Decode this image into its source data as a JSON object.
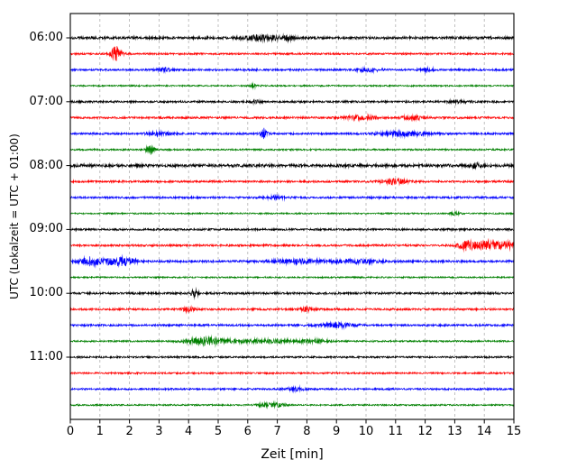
{
  "chart_data": {
    "type": "seismogram",
    "title": "",
    "xlabel": "Zeit  [min]",
    "ylabel": "UTC (Lokalzeit = UTC + 01:00)",
    "xlim": [
      0,
      15
    ],
    "x_ticks": [
      "0",
      "1",
      "2",
      "3",
      "4",
      "5",
      "6",
      "7",
      "8",
      "9",
      "10",
      "11",
      "12",
      "13",
      "14",
      "15"
    ],
    "hour_labels": [
      "06:00",
      "07:00",
      "08:00",
      "09:00",
      "10:00",
      "11:00"
    ],
    "minutes_per_line": 15,
    "grid": "vertical-dashed",
    "colors_cycle": [
      "#000000",
      "#ff0000",
      "#0000ff",
      "#008000"
    ],
    "traces": [
      {
        "start": "06:00",
        "color": "#000000",
        "base": 1.5,
        "events": [
          {
            "t": 6.5,
            "s": 0.45,
            "a": 3
          },
          {
            "t": 7.4,
            "s": 0.15,
            "a": 2
          }
        ]
      },
      {
        "start": "06:15",
        "color": "#ff0000",
        "base": 1.1,
        "events": [
          {
            "t": 1.55,
            "s": 0.12,
            "a": 9
          }
        ]
      },
      {
        "start": "06:30",
        "color": "#0000ff",
        "base": 1.2,
        "events": [
          {
            "t": 3.2,
            "s": 0.15,
            "a": 2
          },
          {
            "t": 10.1,
            "s": 0.3,
            "a": 1.6
          },
          {
            "t": 12.1,
            "s": 0.2,
            "a": 1.6
          }
        ]
      },
      {
        "start": "06:45",
        "color": "#008000",
        "base": 0.9,
        "events": [
          {
            "t": 6.2,
            "s": 0.1,
            "a": 1.5
          }
        ]
      },
      {
        "start": "07:00",
        "color": "#000000",
        "base": 1.2,
        "events": [
          {
            "t": 6.3,
            "s": 0.1,
            "a": 1.5
          },
          {
            "t": 13.2,
            "s": 0.3,
            "a": 1.2
          }
        ]
      },
      {
        "start": "07:15",
        "color": "#ff0000",
        "base": 1.2,
        "events": [
          {
            "t": 9.8,
            "s": 0.35,
            "a": 2.5
          },
          {
            "t": 11.6,
            "s": 0.3,
            "a": 2
          }
        ]
      },
      {
        "start": "07:30",
        "color": "#0000ff",
        "base": 1.2,
        "events": [
          {
            "t": 3.0,
            "s": 0.3,
            "a": 1.4
          },
          {
            "t": 6.55,
            "s": 0.07,
            "a": 7
          },
          {
            "t": 11.3,
            "s": 0.55,
            "a": 2.6
          }
        ]
      },
      {
        "start": "07:45",
        "color": "#008000",
        "base": 1.0,
        "events": [
          {
            "t": 2.7,
            "s": 0.09,
            "a": 6
          }
        ]
      },
      {
        "start": "08:00",
        "color": "#000000",
        "base": 1.8,
        "events": [
          {
            "t": 13.7,
            "s": 0.15,
            "a": 2.5
          }
        ]
      },
      {
        "start": "08:15",
        "color": "#ff0000",
        "base": 1.2,
        "events": [
          {
            "t": 11.0,
            "s": 0.3,
            "a": 3
          }
        ]
      },
      {
        "start": "08:30",
        "color": "#0000ff",
        "base": 1.2,
        "events": [
          {
            "t": 7.0,
            "s": 0.25,
            "a": 1.5
          }
        ]
      },
      {
        "start": "08:45",
        "color": "#008000",
        "base": 0.9,
        "events": [
          {
            "t": 13.0,
            "s": 0.1,
            "a": 1.5
          }
        ]
      },
      {
        "start": "09:00",
        "color": "#000000",
        "base": 1.2,
        "events": []
      },
      {
        "start": "09:15",
        "color": "#ff0000",
        "base": 1.2,
        "events": [
          {
            "t": 13.4,
            "s": 0.2,
            "a": 6
          },
          {
            "t": 14.1,
            "s": 0.25,
            "a": 6
          },
          {
            "t": 14.8,
            "s": 0.2,
            "a": 5
          }
        ]
      },
      {
        "start": "09:30",
        "color": "#0000ff",
        "base": 1.3,
        "events": [
          {
            "t": 0.7,
            "s": 0.25,
            "a": 5
          },
          {
            "t": 1.7,
            "s": 0.35,
            "a": 5
          },
          {
            "t": 7.8,
            "s": 0.7,
            "a": 2
          },
          {
            "t": 9.8,
            "s": 0.5,
            "a": 2
          }
        ]
      },
      {
        "start": "09:45",
        "color": "#008000",
        "base": 0.9,
        "events": []
      },
      {
        "start": "10:00",
        "color": "#000000",
        "base": 1.3,
        "events": [
          {
            "t": 4.2,
            "s": 0.08,
            "a": 5
          }
        ]
      },
      {
        "start": "10:15",
        "color": "#ff0000",
        "base": 1.2,
        "events": [
          {
            "t": 4.0,
            "s": 0.15,
            "a": 2.5
          },
          {
            "t": 8.0,
            "s": 0.15,
            "a": 2.5
          }
        ]
      },
      {
        "start": "10:30",
        "color": "#0000ff",
        "base": 1.2,
        "events": [
          {
            "t": 9.0,
            "s": 0.4,
            "a": 2.6
          }
        ]
      },
      {
        "start": "10:45",
        "color": "#008000",
        "base": 1.0,
        "events": [
          {
            "t": 4.6,
            "s": 0.5,
            "a": 4.5
          },
          {
            "t": 6.6,
            "s": 0.7,
            "a": 2
          },
          {
            "t": 8.3,
            "s": 0.4,
            "a": 1.6
          }
        ]
      },
      {
        "start": "11:00",
        "color": "#000000",
        "base": 1.1,
        "events": []
      },
      {
        "start": "11:15",
        "color": "#ff0000",
        "base": 1.0,
        "events": []
      },
      {
        "start": "11:30",
        "color": "#0000ff",
        "base": 1.1,
        "events": [
          {
            "t": 7.6,
            "s": 0.2,
            "a": 2
          }
        ]
      },
      {
        "start": "11:45",
        "color": "#008000",
        "base": 0.9,
        "events": [
          {
            "t": 6.8,
            "s": 0.3,
            "a": 2.5
          }
        ]
      }
    ]
  }
}
